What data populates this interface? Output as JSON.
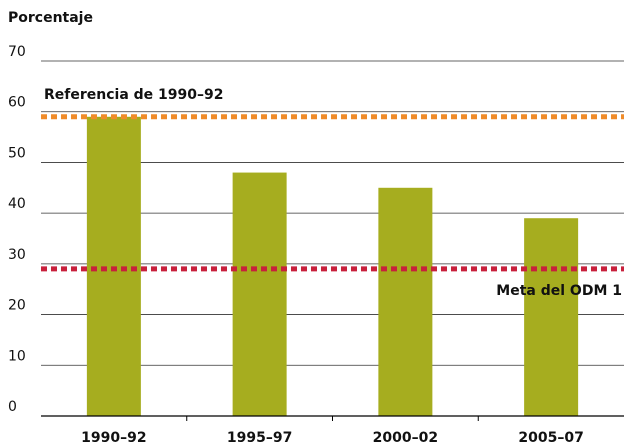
{
  "chart_data": {
    "type": "bar",
    "y_label": "Porcentaje",
    "categories": [
      "1990–92",
      "1995–97",
      "2000–02",
      "2005–07"
    ],
    "values": [
      59,
      48,
      45,
      39
    ],
    "color": "#a6ad1f",
    "ylim": [
      0,
      70
    ],
    "yticks": [
      0,
      10,
      20,
      30,
      40,
      50,
      60,
      70
    ],
    "grid": true,
    "reference_lines": [
      {
        "label": "Referencia de 1990–92",
        "value": 59,
        "color": "#f08c2a"
      },
      {
        "label": "Meta del ODM 1",
        "value": 29,
        "color": "#c8203c"
      }
    ]
  }
}
